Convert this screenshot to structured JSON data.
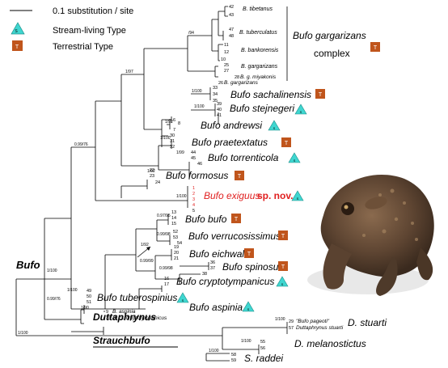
{
  "legend": {
    "scale_label": "0.1 substitution / site",
    "stream_label": "Stream-living Type",
    "terrestrial_label": "Terrestrial Type",
    "stream_symbol": "S",
    "terrestrial_symbol": "T"
  },
  "colors": {
    "stream": "#3fd6d0",
    "terrestrial": "#c0551c",
    "highlight": "#e02020"
  },
  "clades": {
    "gargarizans": "Bufo gargarizans",
    "gargarizans2": "complex",
    "sachalinensis": "Bufo sachalinensis",
    "stejnegeri": "Bufo stejnegeri",
    "andrewsi": "Bufo andrewsi",
    "praetextatus": "Bufo praetextatus",
    "torrenticola": "Bufo torrenticola",
    "formosus": "Bufo formosus",
    "exiguus": "Bufo exiguus",
    "spnov": "sp. nov.",
    "bufo": "Bufo bufo",
    "verrucosissimus": "Bufo verrucosissimus",
    "eichwaldi": "Bufo eichwaldi",
    "spinosus": "Bufo spinosus",
    "cryptotympanicus": "Bufo cryptotympanicus",
    "tuberospinius": "Bufo tuberospinius",
    "aspinia": "Bufo aspinia",
    "stuarti": "D. stuarti",
    "melanostictus": "D. melanostictus",
    "raddei": "S. raddei"
  },
  "genera": {
    "bufo": "Bufo",
    "duttaphrynus": "Duttaphrynus",
    "strauchbufo": "Strauchbufo"
  },
  "sub_taxa": {
    "tibetanus": "B. tibetanus",
    "tuberculatus": "B. tuberculatus",
    "bankorensis": "B. bankorensis",
    "gargarizans": "B. gargarizans",
    "miyakonis": "B. g. miyakonis",
    "gargarizans_b": "B. gargarizans",
    "aspinia_small": "B. aspinia",
    "cf_crypto": "B. cf. cryptotympanicus",
    "pageoti": "\"Bufo pageoti\"",
    "dstuarti": "Duttaphrynus stuarti"
  },
  "support": {
    "s_root": "1/100",
    "s_bufo": "1/100",
    "s_a": "0.99/76",
    "s_b": "1/97",
    "s_c": "/94",
    "s_d": "1/92",
    "s_e": "1/100",
    "s_f": "1/92",
    "s_g": "1/100",
    "s_h": "1/99",
    "s_i": "1/100",
    "s_j": "1/100",
    "s_k": "0.97/95",
    "s_l": "0.99/98",
    "s_m": "0.99/98",
    "s_n": "1/92",
    "s_o": "0.99/99",
    "s_p": "0.99/76",
    "s_q": "1/90",
    "s_r": "1/100",
    "s_s": "1/100",
    "s_t": "1/100",
    "s_u": "1/100"
  },
  "tips": {
    "n42": "42",
    "n43": "43",
    "n47": "47",
    "n48": "48",
    "n11": "11",
    "n12": "12",
    "n10": "10",
    "n25": "25",
    "n27": "27",
    "n28": "28",
    "n26": "26",
    "n33": "33",
    "n34": "34",
    "n35": "35",
    "n39": "39",
    "n40": "40",
    "n41": "41",
    "n6": "6",
    "n8": "8",
    "n7": "7",
    "n30": "30",
    "n31": "31",
    "n32": "32",
    "n44": "44",
    "n45": "45",
    "n46": "46",
    "n22": "22",
    "n23": "23",
    "n24": "24",
    "r1": "1",
    "r2": "2",
    "r3": "3",
    "r4": "4",
    "r5": "5",
    "n13": "13",
    "n14": "14",
    "n15": "15",
    "n52": "52",
    "n53": "53",
    "n54": "54",
    "n19": "19",
    "n20": "20",
    "n21": "21",
    "n36": "36",
    "n37": "37",
    "n38": "38",
    "n16": "16",
    "n17": "17",
    "n49": "49",
    "n50": "50",
    "n51": "51",
    "n9": "9",
    "n18": "18",
    "n29": "29",
    "n57": "57",
    "n55": "55",
    "n56": "56",
    "n58": "58",
    "n59": "59"
  }
}
